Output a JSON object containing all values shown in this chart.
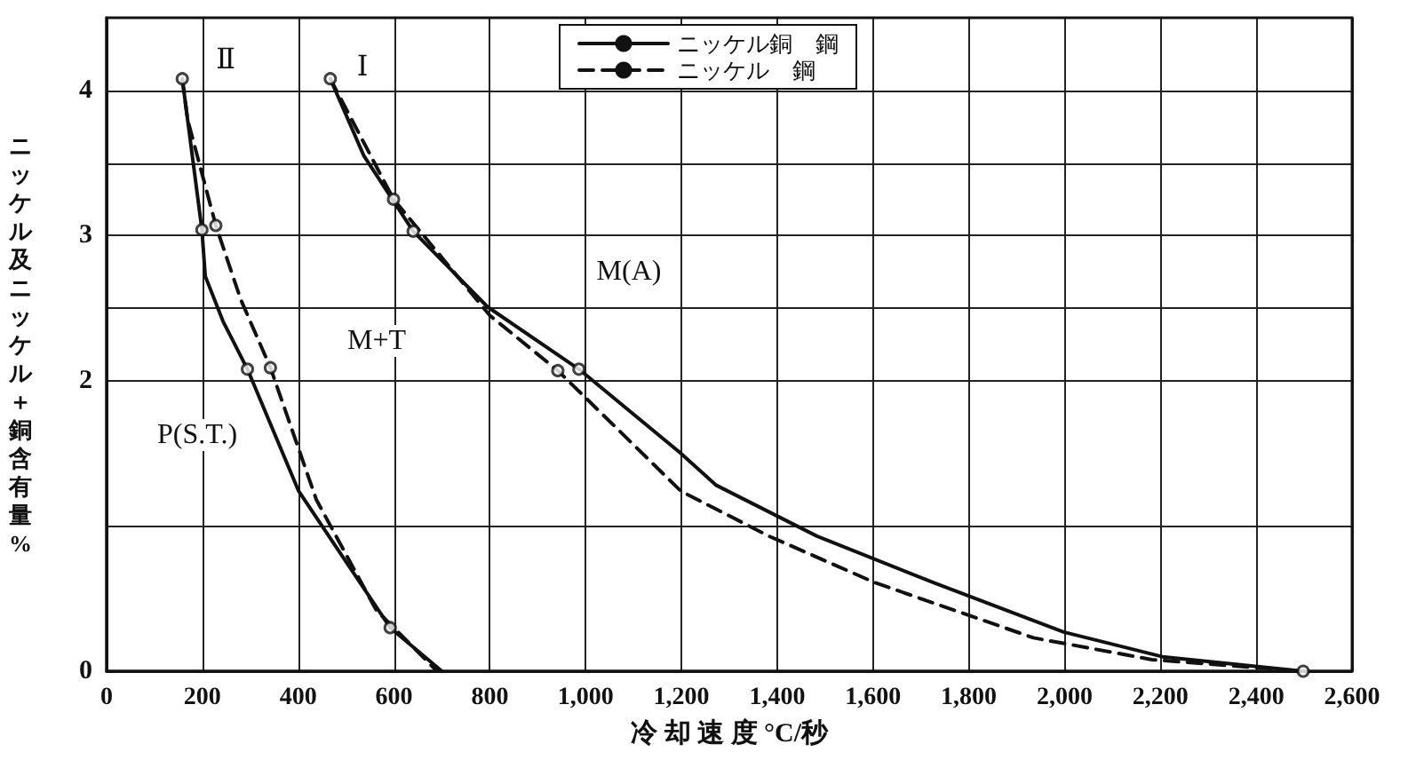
{
  "chart_data": {
    "type": "line",
    "xlabel": "冷 却 速 度 °C/秒",
    "ylabel": "ニッケル及ニッケル＋銅含有量%",
    "xlim": [
      0,
      2600
    ],
    "xticks": [
      0,
      200,
      400,
      600,
      800,
      {
        "value": 1000,
        "label": "1,000"
      },
      {
        "value": 1200,
        "label": "1,200"
      },
      {
        "value": 1400,
        "label": "1,400"
      },
      {
        "value": 1600,
        "label": "1,600"
      },
      {
        "value": 1800,
        "label": "1,800"
      },
      {
        "value": 2000,
        "label": "2,000"
      },
      {
        "value": 2200,
        "label": "2,200"
      },
      {
        "value": 2400,
        "label": "2,400"
      },
      {
        "value": 2600,
        "label": "2,600"
      }
    ],
    "ylim": [
      0,
      4.5
    ],
    "yticks": [
      0,
      {
        "value": 1,
        "label": null
      },
      2,
      {
        "value": 2.5,
        "label": null
      },
      3,
      {
        "value": 3.5,
        "label": null
      },
      4
    ],
    "grid": true,
    "legend": "top",
    "marker": "none",
    "series": [
      {
        "name": "ニッケル銅　鋼",
        "color": "#111111",
        "line_style": "solid",
        "x": [
          467,
          537,
          640,
          795,
          986,
          1199,
          1273,
          1483,
          1726,
          1998,
          2204,
          2498
        ],
        "values": [
          4.08,
          3.55,
          3.03,
          2.51,
          2.08,
          1.5,
          1.28,
          0.93,
          0.61,
          0.27,
          0.1,
          0
        ]
      },
      {
        "name": "ニッケル　鋼",
        "color": "#111111",
        "line_style": "dashed",
        "x": [
          467,
          599,
          800,
          942,
          1199,
          1383,
          1604,
          1935,
          2182,
          2498
        ],
        "values": [
          4.08,
          3.25,
          2.45,
          2.07,
          1.24,
          0.93,
          0.61,
          0.23,
          0.08,
          0
        ]
      },
      {
        "color": "#111111",
        "line_style": "solid",
        "x": [
          158,
          199,
          206,
          243,
          294,
          401,
          592,
          700
        ],
        "values": [
          4.08,
          3.04,
          2.72,
          2.41,
          2.08,
          1.24,
          0.3,
          0
        ]
      },
      {
        "color": "#111111",
        "line_style": "dashed",
        "x": [
          158,
          169,
          228,
          280,
          342,
          438,
          563,
          690
        ],
        "values": [
          4.08,
          3.8,
          3.07,
          2.56,
          2.09,
          1.18,
          0.42,
          0
        ]
      },
      {
        "type": "scatter",
        "marker": "circle",
        "color": "#111111",
        "x": [
          158,
          199,
          228,
          294,
          342,
          592,
          467,
          599,
          640,
          942,
          986,
          2498
        ],
        "values": [
          4.08,
          3.04,
          3.07,
          2.08,
          2.09,
          0.3,
          4.08,
          3.25,
          3.03,
          2.07,
          2.08,
          0
        ]
      }
    ],
    "annotations": [
      "Ⅱ",
      "Ⅰ",
      "M(A)",
      "M+T",
      "P(S.T.)"
    ]
  }
}
